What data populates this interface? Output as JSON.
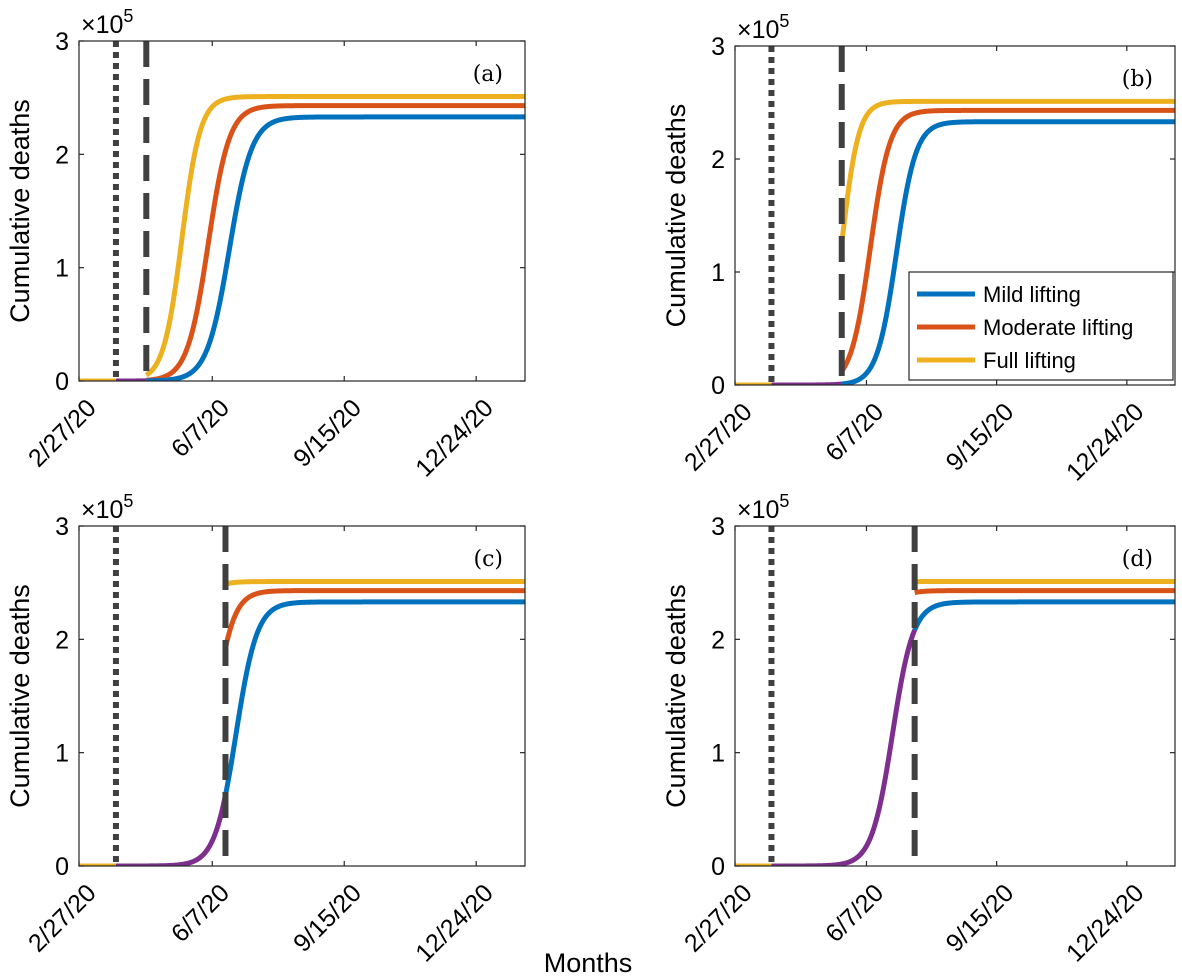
{
  "figure": {
    "xlabel": "Months",
    "colors": {
      "mild": "#0072BD",
      "moderate": "#D95319",
      "full": "#EDB120",
      "lockdown": "#7E2F8E",
      "marker": "#404040"
    }
  },
  "chart_data": [
    {
      "type": "line",
      "panel_label": "(a)",
      "ylabel": "Cumulative deaths",
      "y_exponent_label": "×10",
      "y_exponent_power": "5",
      "xlim": [
        0,
        338
      ],
      "ylim": [
        0,
        3
      ],
      "x_ticks": [
        0,
        101,
        201,
        301
      ],
      "x_tick_labels": [
        "2/27/20",
        "6/7/20",
        "9/15/20",
        "12/24/20"
      ],
      "y_ticks": [
        0,
        1,
        2,
        3
      ],
      "y_tick_labels": [
        "0",
        "1",
        "2",
        "3"
      ],
      "vline_dotted_x": 28,
      "vline_dashed_x": 51,
      "legend": null,
      "series": [
        {
          "name": "Mild lifting",
          "color_key": "mild",
          "plateau": 2.33,
          "midpoint": 114,
          "width": 8.5
        },
        {
          "name": "Moderate lifting",
          "color_key": "moderate",
          "plateau": 2.43,
          "midpoint": 98,
          "width": 8.0
        },
        {
          "name": "Full lifting",
          "color_key": "full",
          "plateau": 2.51,
          "midpoint": 78,
          "width": 7.0
        },
        {
          "name": "",
          "color_key": "lockdown",
          "plateau": 0.0,
          "midpoint": 0,
          "width": 1,
          "x_start": 28,
          "x_end": 51
        }
      ]
    },
    {
      "type": "line",
      "panel_label": "(b)",
      "ylabel": "Cumulative deaths",
      "y_exponent_label": "×10",
      "y_exponent_power": "5",
      "xlim": [
        0,
        338
      ],
      "ylim": [
        0,
        3
      ],
      "x_ticks": [
        0,
        101,
        201,
        301
      ],
      "x_tick_labels": [
        "2/27/20",
        "6/7/20",
        "9/15/20",
        "12/24/20"
      ],
      "y_ticks": [
        0,
        1,
        2,
        3
      ],
      "y_tick_labels": [
        "0",
        "1",
        "2",
        "3"
      ],
      "vline_dotted_x": 28,
      "vline_dashed_x": 82,
      "legend": {
        "location": "lower-right",
        "entries": [
          "Mild lifting",
          "Moderate lifting",
          "Full lifting"
        ]
      },
      "series": [
        {
          "name": "Mild lifting",
          "color_key": "mild",
          "plateau": 2.33,
          "midpoint": 124,
          "width": 7.5
        },
        {
          "name": "Moderate lifting",
          "color_key": "moderate",
          "plateau": 2.43,
          "midpoint": 104,
          "width": 7.5
        },
        {
          "name": "Full lifting",
          "color_key": "full",
          "plateau": 2.51,
          "midpoint": 82,
          "width": 6.5
        },
        {
          "name": "",
          "color_key": "lockdown",
          "plateau": 0.0,
          "midpoint": 0,
          "width": 1,
          "x_start": 28,
          "x_end": 82
        }
      ]
    },
    {
      "type": "line",
      "panel_label": "(c)",
      "ylabel": "Cumulative deaths",
      "y_exponent_label": "×10",
      "y_exponent_power": "5",
      "xlim": [
        0,
        338
      ],
      "ylim": [
        0,
        3
      ],
      "x_ticks": [
        0,
        101,
        201,
        301
      ],
      "x_tick_labels": [
        "2/27/20",
        "6/7/20",
        "9/15/20",
        "12/24/20"
      ],
      "y_ticks": [
        0,
        1,
        2,
        3
      ],
      "y_tick_labels": [
        "0",
        "1",
        "2",
        "3"
      ],
      "vline_dotted_x": 28,
      "vline_dashed_x": 111,
      "legend": null,
      "series": [
        {
          "name": "Mild lifting",
          "color_key": "mild",
          "plateau": 2.33,
          "midpoint": 119,
          "width": 8.0
        },
        {
          "name": "Moderate lifting",
          "color_key": "moderate",
          "plateau": 2.43,
          "midpoint": 101,
          "width": 7.5
        },
        {
          "name": "Full lifting",
          "color_key": "full",
          "plateau": 2.51,
          "midpoint": 78,
          "width": 7.0
        },
        {
          "name": "",
          "color_key": "lockdown",
          "plateau": 0.0,
          "midpoint": 0,
          "width": 1,
          "x_start": 28,
          "x_end": 111
        }
      ]
    },
    {
      "type": "line",
      "panel_label": "(d)",
      "ylabel": "Cumulative deaths",
      "y_exponent_label": "×10",
      "y_exponent_power": "5",
      "xlim": [
        0,
        338
      ],
      "ylim": [
        0,
        3
      ],
      "x_ticks": [
        0,
        101,
        201,
        301
      ],
      "x_tick_labels": [
        "2/27/20",
        "6/7/20",
        "9/15/20",
        "12/24/20"
      ],
      "y_ticks": [
        0,
        1,
        2,
        3
      ],
      "y_tick_labels": [
        "0",
        "1",
        "2",
        "3"
      ],
      "vline_dotted_x": 28,
      "vline_dashed_x": 138,
      "legend": null,
      "series": [
        {
          "name": "Mild lifting",
          "color_key": "mild",
          "plateau": 2.33,
          "midpoint": 121,
          "width": 8.0
        },
        {
          "name": "Moderate lifting",
          "color_key": "moderate",
          "plateau": 2.43,
          "midpoint": 101,
          "width": 7.5
        },
        {
          "name": "Full lifting",
          "color_key": "full",
          "plateau": 2.51,
          "midpoint": 78,
          "width": 7.0
        },
        {
          "name": "",
          "color_key": "lockdown",
          "plateau": 0.0,
          "midpoint": 0,
          "width": 1,
          "x_start": 28,
          "x_end": 138
        }
      ]
    }
  ]
}
